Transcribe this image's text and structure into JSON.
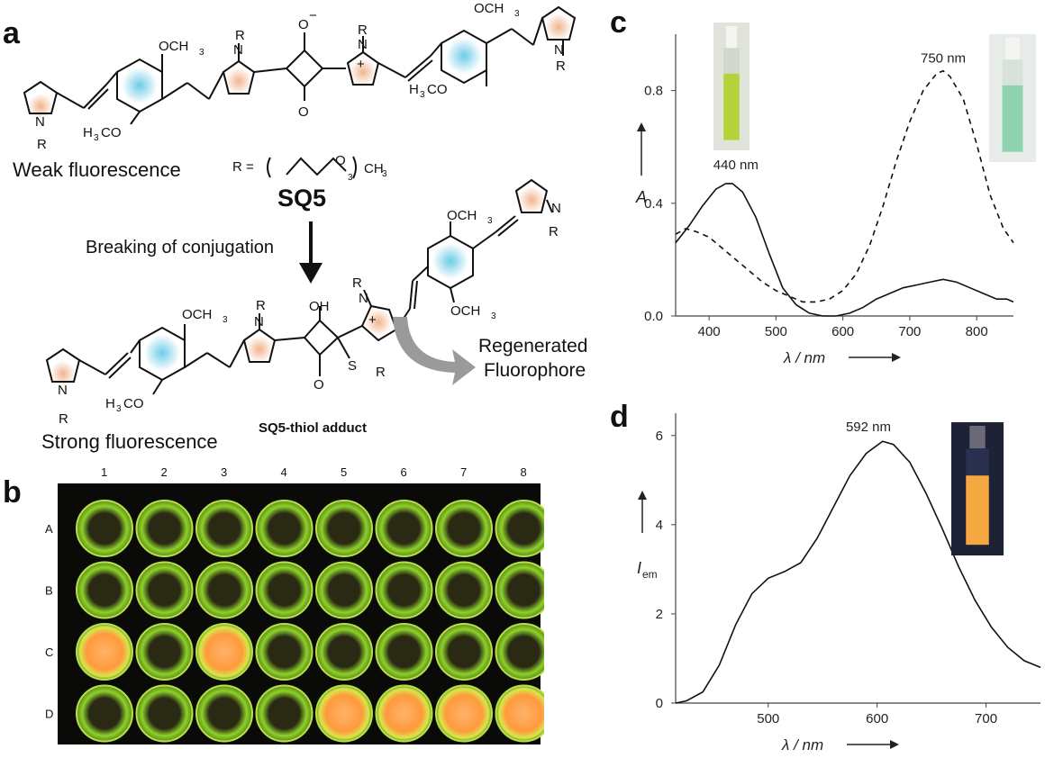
{
  "panels": {
    "a": "a",
    "b": "b",
    "c": "c",
    "d": "d"
  },
  "panel_a": {
    "weak_label": "Weak fluorescence",
    "strong_label": "Strong fluorescence",
    "compound": "SQ5",
    "arrow_label": "Breaking of conjugation",
    "adduct_label": "SQ5-thiol adduct",
    "regen_label_1": "Regenerated",
    "regen_label_2": "Fluorophore",
    "r_def_prefix": "R =",
    "r_def_o": "O",
    "r_def_sub": "3",
    "r_def_ch3": "CH",
    "r_def_ch3_sub": "3",
    "atoms": {
      "n": "N",
      "r": "R",
      "o": "O",
      "oh": "OH",
      "sr": "S",
      "plus": "+",
      "minus": "−",
      "och3": "OCH",
      "h3co": "H",
      "three": "3",
      "co": "CO"
    }
  },
  "panel_b": {
    "columns": [
      "1",
      "2",
      "3",
      "4",
      "5",
      "6",
      "7",
      "8"
    ],
    "rows": [
      "A",
      "B",
      "C",
      "D"
    ],
    "orange_wells": [
      "C1",
      "C3",
      "D5",
      "D6",
      "D7",
      "D8"
    ],
    "colors": {
      "plate": "#0a0a08",
      "green": "#8ed12a",
      "orange": "#ff9a3c"
    }
  },
  "chart_data": [
    {
      "type": "line",
      "panel": "c",
      "xlabel": "λ / nm",
      "ylabel": "A",
      "xlim": [
        350,
        855
      ],
      "ylim": [
        0,
        1.0
      ],
      "xticks": [
        400,
        500,
        600,
        700,
        800
      ],
      "yticks": [
        0.0,
        0.4,
        0.8
      ],
      "annotations": [
        "440 nm",
        "750 nm"
      ],
      "series": [
        {
          "style": "solid",
          "x": [
            350,
            370,
            390,
            410,
            425,
            435,
            450,
            470,
            490,
            510,
            530,
            550,
            570,
            590,
            610,
            630,
            650,
            670,
            690,
            710,
            730,
            750,
            770,
            790,
            810,
            830,
            845,
            855
          ],
          "y": [
            0.26,
            0.32,
            0.39,
            0.45,
            0.47,
            0.47,
            0.44,
            0.35,
            0.22,
            0.1,
            0.04,
            0.01,
            0.0,
            0.0,
            0.01,
            0.03,
            0.06,
            0.08,
            0.1,
            0.11,
            0.12,
            0.13,
            0.12,
            0.1,
            0.08,
            0.06,
            0.06,
            0.05
          ]
        },
        {
          "style": "dashed",
          "x": [
            350,
            365,
            380,
            400,
            420,
            440,
            460,
            480,
            500,
            520,
            540,
            560,
            580,
            600,
            620,
            640,
            660,
            680,
            700,
            720,
            740,
            750,
            760,
            780,
            800,
            820,
            840,
            855
          ],
          "y": [
            0.29,
            0.31,
            0.3,
            0.28,
            0.24,
            0.2,
            0.16,
            0.12,
            0.09,
            0.07,
            0.05,
            0.05,
            0.06,
            0.09,
            0.15,
            0.25,
            0.39,
            0.55,
            0.69,
            0.8,
            0.86,
            0.87,
            0.85,
            0.77,
            0.61,
            0.43,
            0.31,
            0.26
          ]
        }
      ],
      "insets": [
        {
          "color": "#b5d23a"
        },
        {
          "color": "#8fd4b0"
        }
      ]
    },
    {
      "type": "line",
      "panel": "d",
      "xlabel": "λ / nm",
      "ylabel": "I",
      "ylabel_sub": "em",
      "xlim": [
        415,
        750
      ],
      "ylim": [
        0,
        6.5
      ],
      "xticks": [
        500,
        600,
        700
      ],
      "yticks": [
        0,
        2,
        4,
        6
      ],
      "annotations": [
        "592 nm"
      ],
      "series": [
        {
          "style": "solid",
          "x": [
            415,
            425,
            440,
            455,
            470,
            485,
            500,
            515,
            530,
            545,
            560,
            575,
            590,
            605,
            615,
            630,
            645,
            660,
            675,
            690,
            705,
            720,
            735,
            750
          ],
          "y": [
            0.0,
            0.05,
            0.25,
            0.85,
            1.75,
            2.45,
            2.8,
            2.95,
            3.15,
            3.7,
            4.4,
            5.1,
            5.6,
            5.87,
            5.8,
            5.4,
            4.7,
            3.9,
            3.05,
            2.3,
            1.7,
            1.25,
            0.95,
            0.8
          ]
        }
      ],
      "insets": [
        {
          "color": "#f5a840"
        }
      ]
    }
  ]
}
